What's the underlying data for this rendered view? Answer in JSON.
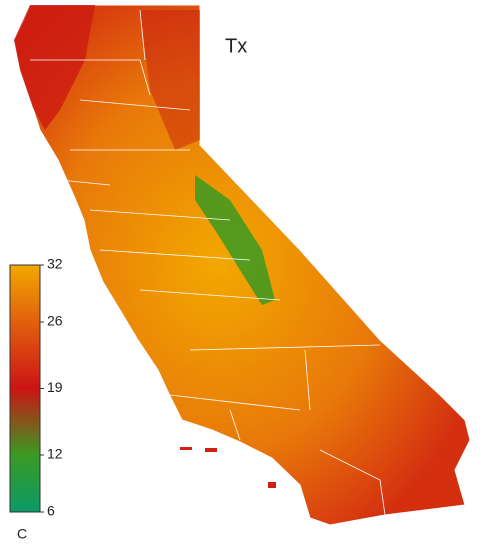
{
  "title": "Tx",
  "legend": {
    "ticks": [
      32,
      26,
      19,
      12,
      6
    ],
    "unit": "C",
    "colors": [
      "#f2a800",
      "#e2600e",
      "#cc1414",
      "#3a9a22",
      "#0a9a68"
    ]
  }
}
